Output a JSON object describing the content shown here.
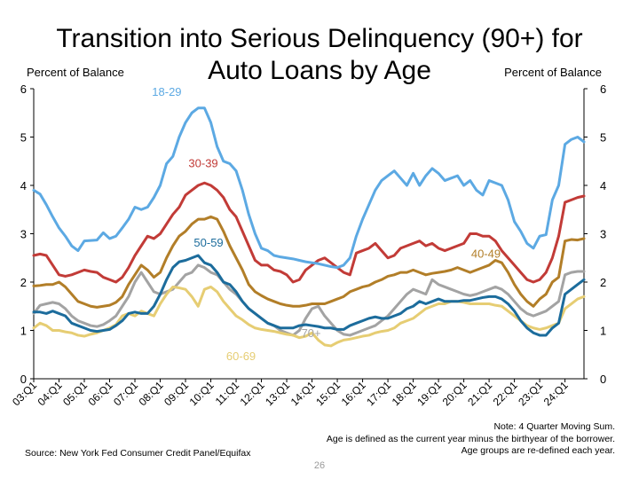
{
  "page": {
    "title_line1": "Transition into Serious Delinquency (90+) for",
    "title_line2": "Auto Loans by Age",
    "ylabel_left": "Percent of Balance",
    "ylabel_right": "Percent of Balance",
    "note_line1": "Note: 4 Quarter Moving Sum.",
    "note_line2": "Age is defined as the current year minus the birthyear of the borrower.",
    "note_line3": "Age groups are re-defined each year.",
    "source": "Source: New York Fed Consumer Credit Panel/Equifax",
    "page_number": "26"
  },
  "chart_data": {
    "type": "line",
    "title": "Transition into Serious Delinquency (90+) for Auto Loans by Age",
    "ylabel": "Percent of Balance",
    "ylim": [
      0,
      6
    ],
    "yticks": [
      0,
      1,
      2,
      3,
      4,
      5,
      6
    ],
    "x_start": "03:Q1",
    "x_end": "24:Q4",
    "n_points": 88,
    "xtick_labels": [
      "03:Q1",
      "04:Q1",
      "05:Q1",
      "06:Q1",
      "07:Q1",
      "08:Q1",
      "09:Q1",
      "10:Q1",
      "11:Q1",
      "12:Q1",
      "13:Q1",
      "14:Q1",
      "15:Q1",
      "16:Q1",
      "17:Q1",
      "18:Q1",
      "19:Q1",
      "20:Q1",
      "21:Q1",
      "22:Q1",
      "23:Q1",
      "24:Q1"
    ],
    "xtick_step": 4,
    "grid": false,
    "legend": "inline labels",
    "series": [
      {
        "name": "18-29",
        "color": "#5ca9e3",
        "values": [
          3.9,
          3.82,
          3.6,
          3.35,
          3.12,
          2.95,
          2.75,
          2.65,
          2.85,
          2.86,
          2.87,
          3.02,
          2.9,
          2.95,
          3.12,
          3.3,
          3.55,
          3.5,
          3.55,
          3.75,
          4.0,
          4.45,
          4.6,
          5.0,
          5.3,
          5.5,
          5.6,
          5.6,
          5.3,
          4.8,
          4.5,
          4.45,
          4.3,
          3.9,
          3.4,
          3.0,
          2.7,
          2.65,
          2.55,
          2.52,
          2.5,
          2.48,
          2.45,
          2.42,
          2.4,
          2.38,
          2.35,
          2.32,
          2.3,
          2.35,
          2.5,
          2.95,
          3.3,
          3.6,
          3.9,
          4.1,
          4.2,
          4.3,
          4.15,
          4.0,
          4.25,
          4.0,
          4.2,
          4.35,
          4.25,
          4.1,
          4.15,
          4.2,
          4.0,
          4.1,
          3.9,
          3.8,
          4.1,
          4.05,
          4.0,
          3.7,
          3.25,
          3.05,
          2.8,
          2.7,
          2.95,
          2.98,
          3.7,
          4.0,
          4.3,
          4.55,
          4.65,
          5.05
        ]
      },
      {
        "name": "30-39",
        "color": "#c23b37",
        "values": [
          2.55,
          2.58,
          2.55,
          2.35,
          2.15,
          2.12,
          2.15,
          2.2,
          2.25,
          2.22,
          2.2,
          2.1,
          2.05,
          2.0,
          2.1,
          2.3,
          2.55,
          2.75,
          2.95,
          2.9,
          3.0,
          3.2,
          3.4,
          3.55,
          3.8,
          3.9,
          4.0,
          4.05,
          4.0,
          3.9,
          3.75,
          3.5,
          3.35,
          3.05,
          2.75,
          2.45,
          2.35,
          2.35,
          2.25,
          2.22,
          2.15,
          2.0,
          2.05,
          2.25,
          2.35,
          2.45,
          2.5,
          2.4,
          2.3,
          2.2,
          2.15,
          2.6,
          2.65,
          2.7,
          2.8,
          2.65,
          2.5,
          2.55,
          2.7,
          2.75,
          2.8,
          2.85,
          2.75,
          2.8,
          2.7,
          2.65,
          2.7,
          2.75,
          2.8,
          3.0,
          3.0,
          2.95,
          2.95,
          2.85,
          2.65,
          2.5,
          2.35,
          2.2,
          2.05,
          2.0,
          2.05,
          2.2,
          2.5,
          2.95,
          3.3,
          3.55,
          3.6,
          3.6
        ]
      },
      {
        "name": "40-49",
        "color": "#b27e28",
        "values": [
          1.92,
          1.93,
          1.95,
          1.95,
          2.0,
          1.9,
          1.75,
          1.6,
          1.55,
          1.5,
          1.48,
          1.5,
          1.52,
          1.58,
          1.7,
          1.95,
          2.15,
          2.35,
          2.25,
          2.1,
          2.2,
          2.5,
          2.75,
          2.95,
          3.05,
          3.2,
          3.3,
          3.3,
          3.35,
          3.3,
          3.05,
          2.75,
          2.5,
          2.25,
          1.95,
          1.8,
          1.72,
          1.65,
          1.6,
          1.55,
          1.52,
          1.5,
          1.5,
          1.52,
          1.55,
          1.55,
          1.55,
          1.6,
          1.65,
          1.7,
          1.8,
          1.85,
          1.9,
          1.93,
          2.0,
          2.05,
          2.12,
          2.15,
          2.2,
          2.2,
          2.25,
          2.2,
          2.15,
          2.18,
          2.2,
          2.22,
          2.25,
          2.3,
          2.25,
          2.2,
          2.25,
          2.3,
          2.35,
          2.45,
          2.4,
          2.2,
          1.95,
          1.75,
          1.6,
          1.5,
          1.65,
          1.75,
          2.0,
          2.1,
          2.2,
          2.35,
          2.65,
          2.85
        ]
      },
      {
        "name": "50-59",
        "color": "#1c6c9c",
        "values": [
          1.38,
          1.38,
          1.35,
          1.4,
          1.35,
          1.3,
          1.15,
          1.1,
          1.05,
          1.0,
          0.98,
          1.0,
          1.02,
          1.1,
          1.2,
          1.35,
          1.38,
          1.35,
          1.35,
          1.5,
          1.75,
          2.05,
          2.3,
          2.42,
          2.45,
          2.5,
          2.55,
          2.4,
          2.35,
          2.2,
          2.0,
          1.95,
          1.8,
          1.6,
          1.45,
          1.35,
          1.25,
          1.15,
          1.1,
          1.05,
          1.05,
          1.05,
          1.1,
          1.12,
          1.1,
          1.08,
          1.05,
          1.05,
          1.02,
          1.02,
          1.1,
          1.15,
          1.2,
          1.25,
          1.28,
          1.25,
          1.25,
          1.3,
          1.35,
          1.45,
          1.5,
          1.6,
          1.55,
          1.6,
          1.65,
          1.6,
          1.6,
          1.6,
          1.62,
          1.62,
          1.65,
          1.68,
          1.7,
          1.7,
          1.65,
          1.55,
          1.4,
          1.2,
          1.05,
          0.95,
          0.9,
          0.9,
          1.05,
          1.15,
          1.25,
          1.35,
          1.5,
          1.6
        ]
      },
      {
        "name": "60-69",
        "color": "#e6cd73",
        "values": [
          1.05,
          1.15,
          1.1,
          1.0,
          1.0,
          0.97,
          0.95,
          0.9,
          0.88,
          0.92,
          0.95,
          1.0,
          1.05,
          1.12,
          1.3,
          1.35,
          1.3,
          1.4,
          1.35,
          1.3,
          1.55,
          1.75,
          1.9,
          1.88,
          1.85,
          1.7,
          1.5,
          1.85,
          1.9,
          1.8,
          1.6,
          1.45,
          1.3,
          1.22,
          1.12,
          1.05,
          1.02,
          1.0,
          0.98,
          0.95,
          0.92,
          0.9,
          0.85,
          0.88,
          0.95,
          0.8,
          0.7,
          0.68,
          0.75,
          0.8,
          0.82,
          0.85,
          0.88,
          0.9,
          0.95,
          0.98,
          1.0,
          1.05,
          1.15,
          1.2,
          1.25,
          1.35,
          1.45,
          1.5,
          1.55,
          1.55,
          1.6,
          1.6,
          1.58,
          1.55,
          1.55,
          1.55,
          1.55,
          1.52,
          1.5,
          1.4,
          1.3,
          1.2,
          1.1,
          1.05,
          1.02,
          1.05,
          1.1,
          1.15,
          1.2,
          1.28,
          1.3,
          1.35
        ]
      },
      {
        "name": "70+",
        "color": "#a3a3a3",
        "values": [
          1.35,
          1.52,
          1.55,
          1.58,
          1.55,
          1.45,
          1.3,
          1.2,
          1.15,
          1.1,
          1.08,
          1.12,
          1.2,
          1.3,
          1.5,
          1.7,
          2.0,
          2.2,
          2.0,
          1.8,
          1.75,
          1.8,
          1.85,
          2.0,
          2.15,
          2.2,
          2.35,
          2.3,
          2.2,
          2.15,
          2.0,
          1.85,
          1.75,
          1.6,
          1.45,
          1.35,
          1.25,
          1.15,
          1.1,
          1.0,
          0.95,
          0.9,
          1.0,
          1.25,
          1.45,
          1.5,
          1.3,
          1.15,
          1.0,
          0.92,
          0.9,
          0.95,
          1.0,
          1.05,
          1.1,
          1.2,
          1.3,
          1.45,
          1.6,
          1.75,
          1.85,
          1.8,
          1.75,
          2.05,
          1.95,
          1.9,
          1.85,
          1.8,
          1.75,
          1.72,
          1.75,
          1.8,
          1.85,
          1.9,
          1.85,
          1.75,
          1.6,
          1.45,
          1.35,
          1.3,
          1.35,
          1.4,
          1.5,
          1.6,
          1.75,
          1.8,
          1.9,
          2.05
        ]
      }
    ],
    "series_tail": {
      "18-29": [
        4.85,
        4.95,
        5.0,
        4.9
      ],
      "30-39": [
        3.65,
        3.7,
        3.75,
        3.78
      ],
      "40-49": [
        2.85,
        2.88,
        2.87,
        2.9
      ],
      "50-59": [
        1.75,
        1.85,
        1.95,
        2.05
      ],
      "60-69": [
        1.45,
        1.55,
        1.65,
        1.7
      ],
      "70+": [
        2.15,
        2.2,
        2.22,
        2.22
      ]
    },
    "annotations": [
      {
        "text": "18-29",
        "series": "18-29"
      },
      {
        "text": "30-39",
        "series": "30-39"
      },
      {
        "text": "50-59",
        "series": "50-59"
      },
      {
        "text": "60-69",
        "series": "60-69"
      },
      {
        "text": "40-49",
        "series": "40-49"
      },
      {
        "text": "70+",
        "series": "70+"
      }
    ]
  }
}
